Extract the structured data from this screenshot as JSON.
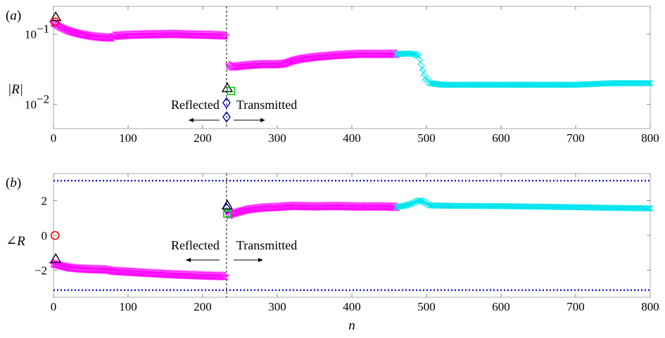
{
  "chart_data": [
    {
      "panel": "(a)",
      "panel_letter": "a",
      "type": "scatter",
      "ylabel": "|R|",
      "yscale": "log",
      "xlim": [
        0,
        800
      ],
      "ylim": [
        0.0045,
        0.25
      ],
      "xticks": [
        0,
        100,
        200,
        300,
        400,
        500,
        600,
        700,
        800
      ],
      "yticks": [
        {
          "value": 0.01,
          "base": "10",
          "exp": "−2"
        },
        {
          "value": 0.1,
          "base": "10",
          "exp": "−1"
        }
      ],
      "divider_x": 232,
      "annotations": {
        "left": "Reflected",
        "right": "Transmitted"
      },
      "series": [
        {
          "color": "#ff00ff",
          "marker": "star",
          "segments": [
            [
              [
                0,
                0.145
              ],
              [
                10,
                0.125
              ],
              [
                20,
                0.112
              ],
              [
                30,
                0.104
              ],
              [
                40,
                0.098
              ],
              [
                50,
                0.094
              ],
              [
                60,
                0.091
              ],
              [
                70,
                0.089
              ],
              [
                78,
                0.089
              ],
              [
                80,
                0.094
              ],
              [
                100,
                0.097
              ],
              [
                130,
                0.099
              ],
              [
                160,
                0.1
              ],
              [
                190,
                0.098
              ],
              [
                210,
                0.097
              ],
              [
                230,
                0.095
              ]
            ],
            [
              [
                236,
                0.036
              ],
              [
                240,
                0.034
              ],
              [
                250,
                0.035
              ],
              [
                260,
                0.036
              ],
              [
                280,
                0.037
              ],
              [
                300,
                0.037
              ],
              [
                310,
                0.038
              ],
              [
                318,
                0.041
              ],
              [
                330,
                0.044
              ],
              [
                350,
                0.047
              ],
              [
                380,
                0.05
              ],
              [
                410,
                0.052
              ],
              [
                440,
                0.052
              ],
              [
                460,
                0.052
              ]
            ]
          ]
        },
        {
          "color": "#00e5ee",
          "marker": "x",
          "segments": [
            [
              [
                460,
                0.052
              ],
              [
                475,
                0.053
              ],
              [
                485,
                0.052
              ],
              [
                490,
                0.048
              ],
              [
                494,
                0.033
              ],
              [
                498,
                0.024
              ],
              [
                505,
                0.02
              ],
              [
                520,
                0.019
              ],
              [
                550,
                0.019
              ],
              [
                600,
                0.019
              ],
              [
                650,
                0.019
              ],
              [
                700,
                0.019
              ],
              [
                750,
                0.02
              ],
              [
                800,
                0.02
              ]
            ]
          ]
        }
      ],
      "points": [
        {
          "marker": "triangle",
          "color": "#000000",
          "x": 3,
          "y": 0.175
        },
        {
          "marker": "circle",
          "color": "#ff0000",
          "x": 2,
          "y": 0.15
        },
        {
          "marker": "triangle",
          "color": "#000000",
          "x": 233,
          "y": 0.017
        },
        {
          "marker": "square",
          "color": "#00cc00",
          "x": 238,
          "y": 0.0155
        },
        {
          "marker": "diamond",
          "color": "#0000cc",
          "x": 232,
          "y": 0.0105
        },
        {
          "marker": "diamond",
          "color": "#0000cc",
          "x": 232,
          "y": 0.0066
        }
      ]
    },
    {
      "panel": "(b)",
      "panel_letter": "b",
      "type": "scatter",
      "ylabel": "∠R",
      "xlabel": "n",
      "xlim": [
        0,
        800
      ],
      "ylim": [
        -3.55,
        3.55
      ],
      "xticks": [
        0,
        100,
        200,
        300,
        400,
        500,
        600,
        700,
        800
      ],
      "yticks": [
        {
          "value": -2,
          "label": "−2"
        },
        {
          "value": 0,
          "label": "0"
        },
        {
          "value": 2,
          "label": "2"
        }
      ],
      "hlines": [
        3.1416,
        -3.1416
      ],
      "divider_x": 232,
      "annotations": {
        "left": "Reflected",
        "right": "Transmitted"
      },
      "series": [
        {
          "color": "#ff00ff",
          "marker": "star",
          "segments": [
            [
              [
                0,
                -1.62
              ],
              [
                10,
                -1.75
              ],
              [
                20,
                -1.85
              ],
              [
                35,
                -1.92
              ],
              [
                50,
                -1.95
              ],
              [
                70,
                -1.97
              ],
              [
                80,
                -2.05
              ],
              [
                100,
                -2.1
              ],
              [
                130,
                -2.18
              ],
              [
                160,
                -2.25
              ],
              [
                190,
                -2.3
              ],
              [
                210,
                -2.33
              ],
              [
                230,
                -2.35
              ]
            ],
            [
              [
                236,
                1.15
              ],
              [
                240,
                1.25
              ],
              [
                260,
                1.48
              ],
              [
                280,
                1.58
              ],
              [
                300,
                1.62
              ],
              [
                320,
                1.68
              ],
              [
                350,
                1.65
              ],
              [
                380,
                1.67
              ],
              [
                410,
                1.64
              ],
              [
                440,
                1.65
              ],
              [
                460,
                1.62
              ]
            ]
          ]
        },
        {
          "color": "#00e5ee",
          "marker": "x",
          "segments": [
            [
              [
                460,
                1.62
              ],
              [
                470,
                1.7
              ],
              [
                480,
                1.82
              ],
              [
                490,
                2.02
              ],
              [
                495,
                1.95
              ],
              [
                505,
                1.72
              ],
              [
                530,
                1.7
              ],
              [
                600,
                1.68
              ],
              [
                700,
                1.62
              ],
              [
                750,
                1.58
              ],
              [
                800,
                1.55
              ]
            ]
          ]
        }
      ],
      "points": [
        {
          "marker": "circle",
          "color": "#ff0000",
          "x": 2,
          "y": 0.0
        },
        {
          "marker": "triangle",
          "color": "#000000",
          "x": 3,
          "y": -1.35
        },
        {
          "marker": "triangle",
          "color": "#000000",
          "x": 233,
          "y": 1.72
        },
        {
          "marker": "diamond",
          "color": "#0000cc",
          "x": 232,
          "y": 1.55
        },
        {
          "marker": "square",
          "color": "#00cc00",
          "x": 233,
          "y": 1.25
        }
      ]
    }
  ]
}
